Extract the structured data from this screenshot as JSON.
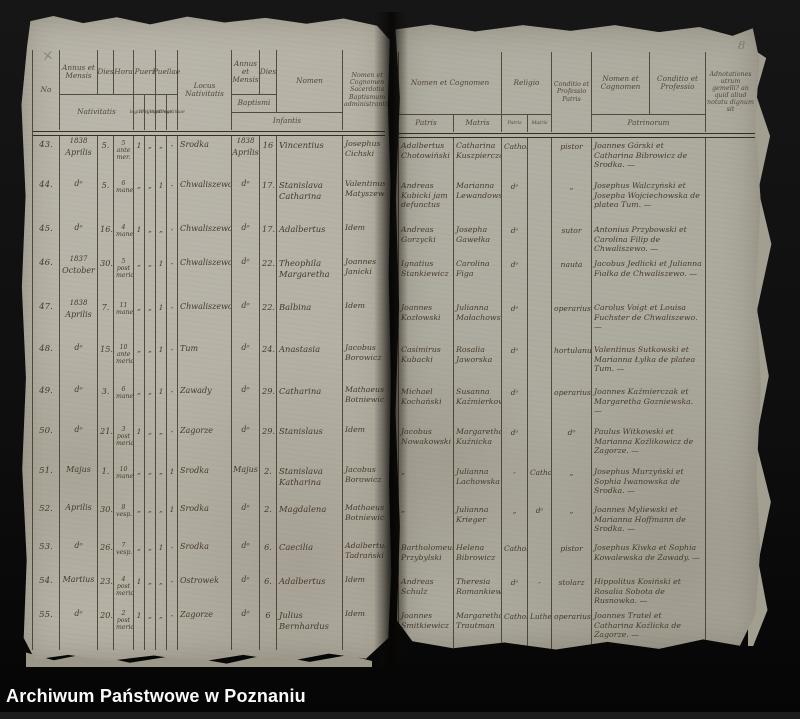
{
  "document": {
    "corner_mark": "×",
    "page_number": "8"
  },
  "watermark": {
    "text": "Archiwum Państwowe w Poznaniu"
  },
  "colors": {
    "paper": "#b5b1a5",
    "ink": "#463a2b",
    "background": "#0b0b0b",
    "watermark_bar": "#000000",
    "watermark_text": "#fafafa",
    "pencil": "#8a867b"
  },
  "left_page": {
    "headers": {
      "no": "No",
      "annus_mensis": "Annus et Mensis",
      "dies": "Dies",
      "hora": "Hora",
      "nativitatis": "Nativitatis",
      "pueri": "Pueri",
      "puellae": "Puellae",
      "legitimi": "legitimi",
      "illegitimi": "illegitimi",
      "legitimae": "legitimae",
      "illegitimae": "illegitimae",
      "locus_nativitatis": "Locus Nativitatis",
      "annus_mensis_baptismi": "Annus et Mensis",
      "dies_baptismi": "Dies",
      "baptismi": "Baptismi",
      "nomen": "Nomen",
      "infantis": "Infantis",
      "sacerdos": "Nomen et Cognomen Sacerdotis Baptismum administrantis"
    },
    "rows": [
      {
        "no": "43.",
        "nat_year": "1838",
        "nat_month": "Aprilis",
        "dies": "5.",
        "hora": "5 ante mer.",
        "p_leg": "1",
        "p_ill": "„",
        "g_leg": "„",
        "g_ill": "-",
        "locus": "Srodka",
        "bapt_year": "1838",
        "bapt_month": "Aprilis",
        "bapt_dies": "16",
        "nomen": "Vincentius",
        "sacerdos": "Josephus Cichski"
      },
      {
        "no": "44.",
        "nat_year": "",
        "nat_month": "dᵒ",
        "dies": "5.",
        "hora": "6 mane",
        "p_leg": "„",
        "p_ill": "„",
        "g_leg": "1",
        "g_ill": "-",
        "locus": "Chwaliszewo",
        "bapt_year": "",
        "bapt_month": "dᵒ",
        "bapt_dies": "17.",
        "nomen": "Stanislava Catharina",
        "sacerdos": "Valentinus Matyszewski"
      },
      {
        "no": "45.",
        "nat_year": "",
        "nat_month": "dᵒ",
        "dies": "16.",
        "hora": "4 mane",
        "p_leg": "1",
        "p_ill": "„",
        "g_leg": "„",
        "g_ill": "-",
        "locus": "Chwaliszewo",
        "bapt_year": "",
        "bapt_month": "dᵒ",
        "bapt_dies": "17.",
        "nomen": "Adalbertus",
        "sacerdos": "Idem"
      },
      {
        "no": "46.",
        "nat_year": "1837",
        "nat_month": "October",
        "dies": "30.",
        "hora": "5 post meridiem",
        "p_leg": "„",
        "p_ill": "„",
        "g_leg": "1",
        "g_ill": "-",
        "locus": "Chwaliszewo",
        "bapt_year": "",
        "bapt_month": "dᵒ",
        "bapt_dies": "22.",
        "nomen": "Theophila Margaretha",
        "sacerdos": "Joannes Janicki"
      },
      {
        "no": "47.",
        "nat_year": "1838",
        "nat_month": "Aprilis",
        "dies": "7.",
        "hora": "11 mane",
        "p_leg": "„",
        "p_ill": "„",
        "g_leg": "1",
        "g_ill": "-",
        "locus": "Chwaliszewo",
        "bapt_year": "",
        "bapt_month": "dᵒ",
        "bapt_dies": "22.",
        "nomen": "Balbina",
        "sacerdos": "Idem"
      },
      {
        "no": "48.",
        "nat_year": "",
        "nat_month": "dᵒ",
        "dies": "15.",
        "hora": "10 ante meridiem",
        "p_leg": "„",
        "p_ill": "„",
        "g_leg": "1",
        "g_ill": "-",
        "locus": "Tum",
        "bapt_year": "",
        "bapt_month": "dᵒ",
        "bapt_dies": "24.",
        "nomen": "Anastasia",
        "sacerdos": "Jacobus Borowicz"
      },
      {
        "no": "49.",
        "nat_year": "",
        "nat_month": "dᵒ",
        "dies": "3.",
        "hora": "6 mane",
        "p_leg": "„",
        "p_ill": "„",
        "g_leg": "1",
        "g_ill": "-",
        "locus": "Zawady",
        "bapt_year": "",
        "bapt_month": "dᵒ",
        "bapt_dies": "29.",
        "nomen": "Catharina",
        "sacerdos": "Mathaeus Botniewicz"
      },
      {
        "no": "50.",
        "nat_year": "",
        "nat_month": "dᵒ",
        "dies": "21.",
        "hora": "3 post meridiem",
        "p_leg": "1",
        "p_ill": "„",
        "g_leg": "„",
        "g_ill": "-",
        "locus": "Zagorze",
        "bapt_year": "",
        "bapt_month": "dᵒ",
        "bapt_dies": "29.",
        "nomen": "Stanislaus",
        "sacerdos": "Idem"
      },
      {
        "no": "51.",
        "nat_year": "",
        "nat_month": "Majus",
        "dies": "1.",
        "hora": "10 mane",
        "p_leg": "„",
        "p_ill": "„",
        "g_leg": "„",
        "g_ill": "1",
        "locus": "Srodka",
        "bapt_year": "",
        "bapt_month": "Majus",
        "bapt_dies": "2.",
        "nomen": "Stanislava Katharina",
        "sacerdos": "Jacobus Borowicz"
      },
      {
        "no": "52.",
        "nat_year": "",
        "nat_month": "Aprilis",
        "dies": "30.",
        "hora": "8 vesp.",
        "p_leg": "„",
        "p_ill": "„",
        "g_leg": "„",
        "g_ill": "1",
        "locus": "Srodka",
        "bapt_year": "",
        "bapt_month": "dᵒ",
        "bapt_dies": "2.",
        "nomen": "Magdalena",
        "sacerdos": "Mathaeus Botniewicz"
      },
      {
        "no": "53.",
        "nat_year": "",
        "nat_month": "dᵒ",
        "dies": "26.",
        "hora": "7 vesp.",
        "p_leg": "„",
        "p_ill": "„",
        "g_leg": "1",
        "g_ill": "-",
        "locus": "Srodka",
        "bapt_year": "",
        "bapt_month": "dᵒ",
        "bapt_dies": "6.",
        "nomen": "Caecilia",
        "sacerdos": "Adalbertus Tadrański"
      },
      {
        "no": "54.",
        "nat_year": "",
        "nat_month": "Martius",
        "dies": "23.",
        "hora": "4 post meridiem",
        "p_leg": "1",
        "p_ill": "„",
        "g_leg": "„",
        "g_ill": "-",
        "locus": "Ostrowek",
        "bapt_year": "",
        "bapt_month": "dᵒ",
        "bapt_dies": "6.",
        "nomen": "Adalbertus",
        "sacerdos": "Idem"
      },
      {
        "no": "55.",
        "nat_year": "",
        "nat_month": "dᵒ",
        "dies": "20.",
        "hora": "2 post meridiem",
        "p_leg": "1",
        "p_ill": "„",
        "g_leg": "„",
        "g_ill": "-",
        "locus": "Zagorze",
        "bapt_year": "",
        "bapt_month": "dᵒ",
        "bapt_dies": "6",
        "nomen": "Julius Bernhardus",
        "sacerdos": "Idem"
      }
    ]
  },
  "right_page": {
    "headers": {
      "nomen_cognomen": "Nomen et Cognomen",
      "patris": "Patris",
      "matris": "Matris",
      "religio": "Religio",
      "religio_patris": "Patris",
      "religio_matris": "Matris",
      "conditio_patris": "Conditio et Professio Patris",
      "patrinorum_nomen": "Nomen et Cognomen",
      "patrinorum_conditio": "Conditio et Professio",
      "patrinorum": "Patrinorum",
      "adnotationes": "Adnotationes utrum gemelli? an quid aliud notatu dignum sit"
    },
    "rows": [
      {
        "pater": "Adalbertus Chotowiński",
        "mater": "Catharina Kuszpierczańska",
        "rel_p": "Catholica",
        "rel_m": "",
        "cond": "pistor",
        "patrini": "Joannes Górski et Catharina Bibrowicz de Srodka. —",
        "adnot": ""
      },
      {
        "pater": "Andreas Kubicki jam defunctus",
        "mater": "Marianna Lewandowska",
        "rel_p": "dᵒ",
        "rel_m": "",
        "cond": "„",
        "patrini": "Josephus Walczyński et Josepha Wojciechowska de platea Tum. —",
        "adnot": ""
      },
      {
        "pater": "Andreas Gorzycki",
        "mater": "Josepha Gawełka",
        "rel_p": "dᵒ",
        "rel_m": "",
        "cond": "sutor",
        "patrini": "Antonius Przybowski et Carolina Filip de Chwaliszewo. —",
        "adnot": ""
      },
      {
        "pater": "Ignatius Stankiewicz",
        "mater": "Carolina Figa",
        "rel_p": "dᵒ",
        "rel_m": "",
        "cond": "nauta",
        "patrini": "Jacobus Jedlicki et Julianna Fiałka de Chwaliszewo. —",
        "adnot": ""
      },
      {
        "pater": "Joannes Kozłowski",
        "mater": "Julianna Małachowska",
        "rel_p": "dᵒ",
        "rel_m": "",
        "cond": "operarius",
        "patrini": "Carolus Voigt et Louisa Fuchster de Chwaliszewo. —",
        "adnot": ""
      },
      {
        "pater": "Casimirus Kubacki",
        "mater": "Rosalia Jaworska",
        "rel_p": "dᵒ",
        "rel_m": "",
        "cond": "hortulanus",
        "patrini": "Valentinus Sutkowski et Marianna Łylka de platea Tum. —",
        "adnot": ""
      },
      {
        "pater": "Michael Kochański",
        "mater": "Susanna Kaźmierkowna",
        "rel_p": "dᵒ",
        "rel_m": "",
        "cond": "operarius",
        "patrini": "Joannes Kaźmierczak et Margaretha Gozniewska. —",
        "adnot": ""
      },
      {
        "pater": "Jacobus Nowakowski",
        "mater": "Margaretha Kuźnicka",
        "rel_p": "dᵒ",
        "rel_m": "",
        "cond": "dᵒ",
        "patrini": "Paulus Witkowski et Marianna Koźlikowicz de Zagorze. —",
        "adnot": ""
      },
      {
        "pater": "„",
        "mater": "Julianna Lachowska",
        "rel_p": "-",
        "rel_m": "Catholica",
        "cond": "„",
        "patrini": "Josephus Murzyński et Sophia Iwanowska de Srodka. —",
        "adnot": ""
      },
      {
        "pater": "„",
        "mater": "Julianna Krieger",
        "rel_p": "„",
        "rel_m": "dᵒ",
        "cond": "„",
        "patrini": "Joannes Myliewski et Marianna Hoffmann de Srodka. —",
        "adnot": ""
      },
      {
        "pater": "Bartholomeus Przybylski",
        "mater": "Helena Bibrowicz",
        "rel_p": "Catholica",
        "rel_m": "",
        "cond": "pistor",
        "patrini": "Josephus Kiwka et Sophia Kowalewska de Zawady. —",
        "adnot": ""
      },
      {
        "pater": "Andreas Schulz",
        "mater": "Theresia Romankiewicz",
        "rel_p": "dᵒ",
        "rel_m": "-",
        "cond": "stolarz",
        "patrini": "Hippolitus Kosiński et Rosalia Sobota de Rusnowka. —",
        "adnot": ""
      },
      {
        "pater": "Joannes Smitkiewicz",
        "mater": "Margaretha Trautman",
        "rel_p": "Catholica",
        "rel_m": "Lutherana",
        "cond": "operarius",
        "patrini": "Joannes Tratel et Catharina Koźlicka de Zagorze. —",
        "adnot": ""
      }
    ]
  }
}
